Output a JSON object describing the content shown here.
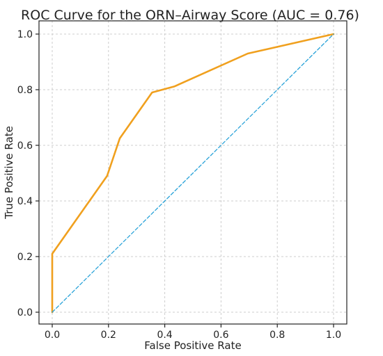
{
  "chart_data": {
    "type": "line",
    "title": "ROC Curve for the ORN–Airway Score (AUC = 0.76)",
    "xlabel": "False Positive Rate",
    "ylabel": "True Positive Rate",
    "xlim": [
      0.0,
      1.0
    ],
    "ylim": [
      0.0,
      1.0
    ],
    "xticks": [
      "0.0",
      "0.2",
      "0.4",
      "0.6",
      "0.8",
      "1.0"
    ],
    "yticks": [
      "0.0",
      "0.2",
      "0.4",
      "0.6",
      "0.8",
      "1.0"
    ],
    "grid": true,
    "series": [
      {
        "style": "solid",
        "color": "#F0A01E",
        "x": [
          0.0,
          0.0,
          0.195,
          0.24,
          0.355,
          0.435,
          0.695,
          1.0
        ],
        "y": [
          0.0,
          0.21,
          0.49,
          0.625,
          0.79,
          0.812,
          0.93,
          1.0
        ]
      },
      {
        "style": "dashed",
        "color": "#2AA3D9",
        "x": [
          0.0,
          1.0
        ],
        "y": [
          0.0,
          1.0
        ]
      }
    ]
  }
}
